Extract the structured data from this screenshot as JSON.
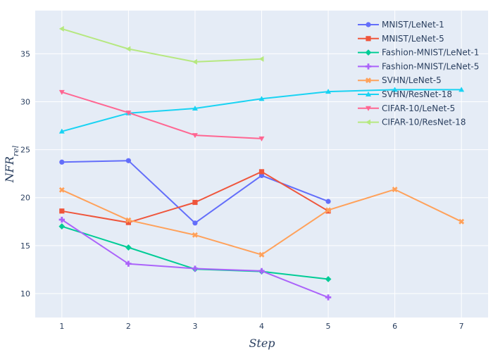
{
  "chart_data": {
    "type": "line",
    "xlabel": "Step",
    "ylabel": "NFR_rel",
    "xlim": [
      0.6,
      7.4
    ],
    "ylim": [
      7.5,
      39.5
    ],
    "xticks": [
      1,
      2,
      3,
      4,
      5,
      6,
      7
    ],
    "yticks": [
      10,
      15,
      20,
      25,
      30,
      35
    ],
    "grid": true,
    "legend_position": "top-right",
    "colors": {
      "plot_background": "#e5ecf6",
      "grid": "#ffffff",
      "text": "#2a3f5f"
    },
    "series": [
      {
        "name": "MNIST/LeNet-1",
        "color": "#636efa",
        "marker": "circle",
        "x": [
          1,
          2,
          3,
          4,
          5
        ],
        "y": [
          23.7,
          23.85,
          17.35,
          22.3,
          19.6
        ]
      },
      {
        "name": "MNIST/LeNet-5",
        "color": "#ef553b",
        "marker": "square",
        "x": [
          1,
          2,
          3,
          4,
          5
        ],
        "y": [
          18.6,
          17.4,
          19.5,
          22.7,
          18.6
        ]
      },
      {
        "name": "Fashion-MNIST/LeNet-1",
        "color": "#00cc96",
        "marker": "diamond",
        "x": [
          1,
          2,
          3,
          4,
          5
        ],
        "y": [
          17.0,
          14.8,
          12.55,
          12.3,
          11.5
        ]
      },
      {
        "name": "Fashion-MNIST/LeNet-5",
        "color": "#ab63fa",
        "marker": "cross",
        "x": [
          1,
          2,
          3,
          4,
          5
        ],
        "y": [
          17.7,
          13.1,
          12.6,
          12.35,
          9.6
        ]
      },
      {
        "name": "SVHN/LeNet-5",
        "color": "#ffa15a",
        "marker": "x",
        "x": [
          1,
          2,
          3,
          4,
          5,
          6,
          7
        ],
        "y": [
          20.8,
          17.65,
          16.1,
          14.05,
          18.7,
          20.85,
          17.5
        ]
      },
      {
        "name": "SVHN/ResNet-18",
        "color": "#19d3f3",
        "marker": "triangle-up",
        "x": [
          1,
          2,
          3,
          4,
          5,
          6,
          7
        ],
        "y": [
          26.9,
          28.8,
          29.3,
          30.3,
          31.05,
          31.25,
          31.25
        ]
      },
      {
        "name": "CIFAR-10/LeNet-5",
        "color": "#ff6692",
        "marker": "triangle-down",
        "x": [
          1,
          2,
          3,
          4
        ],
        "y": [
          31.0,
          28.85,
          26.5,
          26.15
        ]
      },
      {
        "name": "CIFAR-10/ResNet-18",
        "color": "#b6e880",
        "marker": "triangle-left",
        "x": [
          1,
          2,
          3,
          4
        ],
        "y": [
          37.6,
          35.5,
          34.15,
          34.45
        ]
      }
    ]
  }
}
